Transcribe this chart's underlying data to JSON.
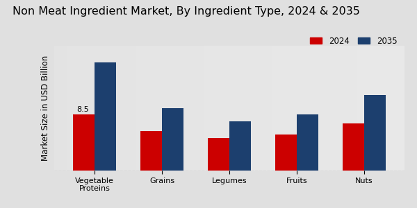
{
  "title": "Non Meat Ingredient Market, By Ingredient Type, 2024 & 2035",
  "ylabel": "Market Size in USD Billion",
  "categories": [
    "Vegetable\nProteins",
    "Grains",
    "Legumes",
    "Fruits",
    "Nuts"
  ],
  "values_2024": [
    8.5,
    6.0,
    5.0,
    5.5,
    7.2
  ],
  "values_2035": [
    16.5,
    9.5,
    7.5,
    8.5,
    11.5
  ],
  "color_2024": "#cc0000",
  "color_2035": "#1c3f6e",
  "label_2024": "2024",
  "label_2035": "2035",
  "annotation_text": "8.5",
  "annotation_category_index": 0,
  "bar_width": 0.32,
  "ylim": [
    0,
    19
  ],
  "background_color": "#e0e0e0",
  "title_fontsize": 11.5,
  "axis_label_fontsize": 8.5,
  "tick_fontsize": 8,
  "legend_fontsize": 8.5,
  "bottom_bar_color": "#cc0000"
}
